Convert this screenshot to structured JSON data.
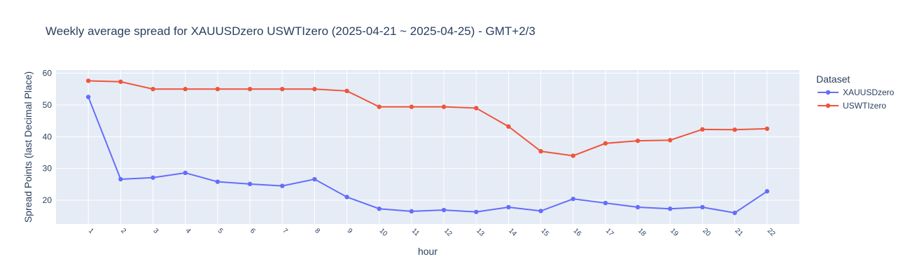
{
  "chart_data": {
    "type": "line",
    "title": "Weekly average spread for  XAUUSDzero USWTIzero (2025-04-21 ~ 2025-04-25) - GMT+2/3",
    "xlabel": "hour",
    "ylabel": "Spread Points (last Decimal Place)",
    "x": [
      1,
      2,
      3,
      4,
      5,
      6,
      7,
      8,
      9,
      10,
      11,
      12,
      13,
      14,
      15,
      16,
      17,
      18,
      19,
      20,
      21,
      22
    ],
    "xlim": [
      0,
      23
    ],
    "ylim": [
      12.5,
      61
    ],
    "yticks": [
      20,
      30,
      40,
      50,
      60
    ],
    "grid": true,
    "legend": {
      "title": "Dataset",
      "placement": "top-right"
    },
    "colors": {
      "plot_bg": "#e5ecf6",
      "grid": "#ffffff",
      "text": "#2a3f5f"
    },
    "series": [
      {
        "name": "XAUUSDzero",
        "color": "#636efa",
        "values": [
          52.5,
          26.6,
          27.1,
          28.6,
          25.8,
          25.1,
          24.5,
          26.6,
          21.0,
          17.3,
          16.5,
          16.9,
          16.3,
          17.8,
          16.6,
          20.4,
          19.1,
          17.8,
          17.3,
          17.8,
          16.0,
          22.8
        ]
      },
      {
        "name": "USWTIzero",
        "color": "#ef553b",
        "values": [
          57.6,
          57.3,
          55.0,
          55.0,
          55.0,
          55.0,
          55.0,
          55.0,
          54.4,
          49.4,
          49.4,
          49.4,
          49.0,
          43.2,
          35.4,
          34.0,
          37.9,
          38.7,
          38.9,
          42.3,
          42.2,
          42.5
        ]
      }
    ]
  }
}
